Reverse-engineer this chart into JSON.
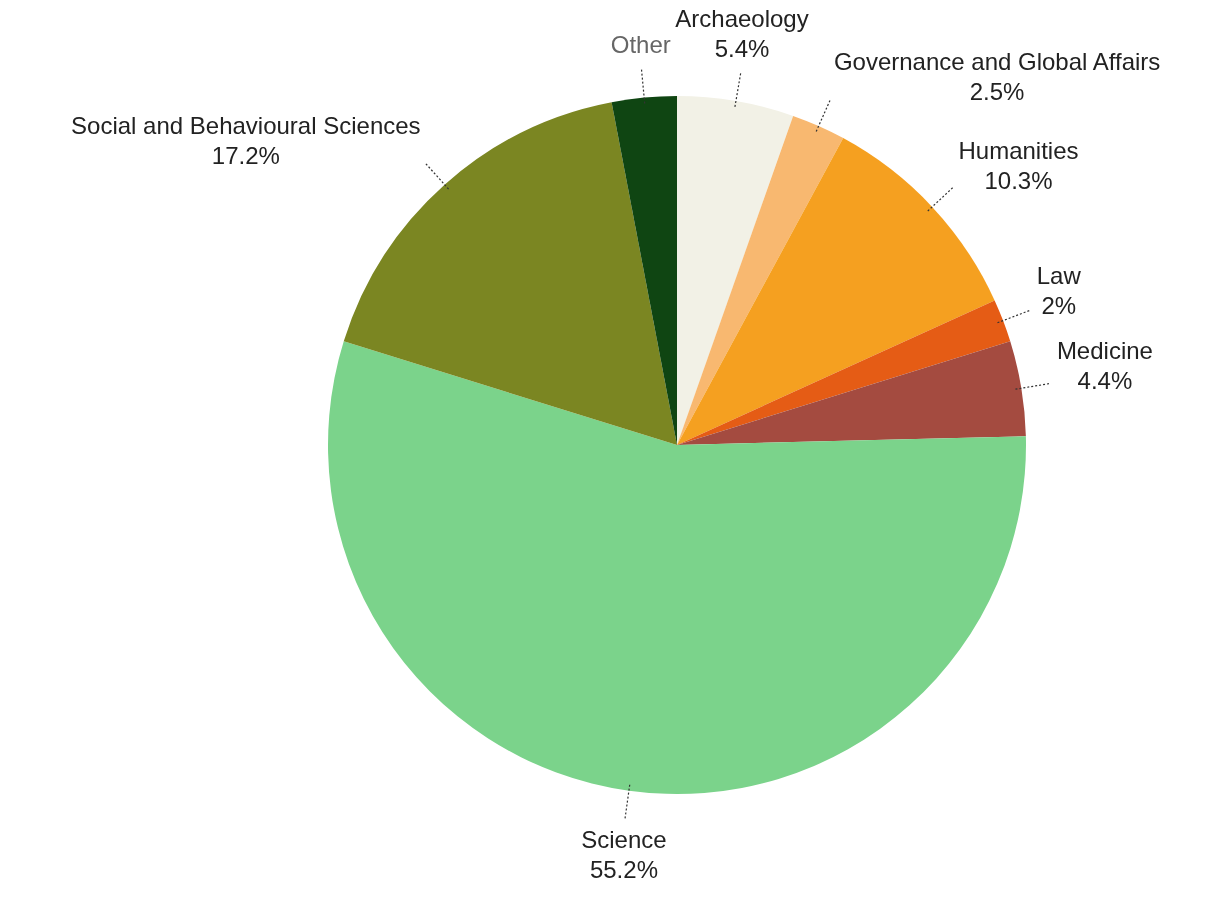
{
  "chart_data": {
    "type": "pie",
    "categories": [
      "Archaeology",
      "Governance and Global Affairs",
      "Humanities",
      "Law",
      "Medicine",
      "Science",
      "Social and Behavioural Sciences",
      "Other"
    ],
    "values": [
      5.4,
      2.5,
      10.3,
      2,
      4.4,
      55.2,
      17.2,
      3.0
    ],
    "value_labels": [
      "5.4%",
      "2.5%",
      "10.3%",
      "2%",
      "4.4%",
      "55.2%",
      "17.2%",
      null
    ],
    "colors": [
      "#f2f1e6",
      "#f8b870",
      "#f5a020",
      "#e55c15",
      "#a44b40",
      "#7bd38b",
      "#7b8622",
      "#0f4512"
    ],
    "legend": false
  }
}
